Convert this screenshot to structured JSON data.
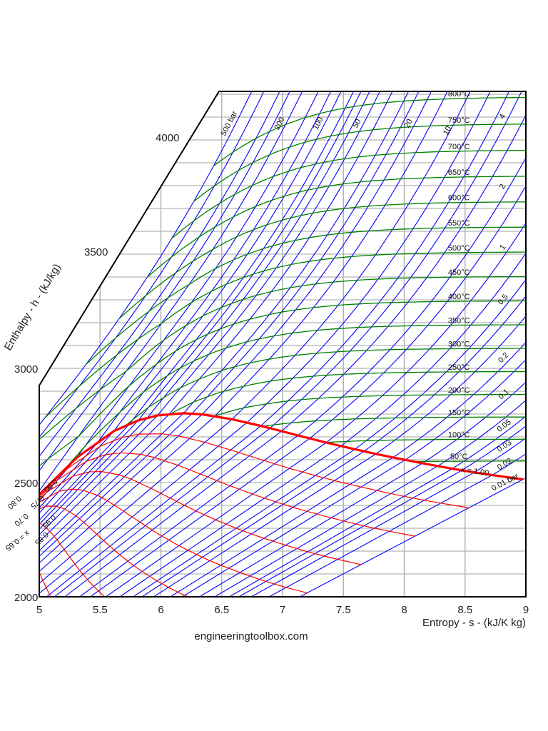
{
  "chart_data": {
    "type": "line",
    "title": "",
    "xlabel": "Entropy - s - (kJ/K kg)",
    "ylabel": "Enthalpy - h - (kJ/kg)",
    "xlim": [
      5,
      9
    ],
    "ylim": [
      2000,
      4200
    ],
    "xticks": [
      5,
      5.5,
      6,
      6.5,
      7,
      7.5,
      8,
      8.5,
      9
    ],
    "yticks": [
      2000,
      2500,
      3000,
      3500,
      4000
    ],
    "grid": true,
    "isobars": {
      "unit": "bar",
      "color": "#0000ff",
      "values": [
        0.01,
        0.02,
        0.03,
        0.04,
        0.05,
        0.07,
        0.1,
        0.15,
        0.2,
        0.3,
        0.4,
        0.5,
        0.7,
        1,
        1.5,
        2,
        3,
        4,
        5,
        7,
        10,
        15,
        20,
        25,
        30,
        40,
        50,
        60,
        70,
        80,
        100,
        120,
        150,
        200,
        250,
        300,
        400,
        500
      ],
      "labels": [
        {
          "p": 500,
          "text": "500 bar"
        },
        {
          "p": 200,
          "text": "200"
        },
        {
          "p": 100,
          "text": "100"
        },
        {
          "p": 50,
          "text": "50"
        },
        {
          "p": 20,
          "text": "20"
        },
        {
          "p": 10,
          "text": "10"
        },
        {
          "p": 4,
          "text": "4"
        },
        {
          "p": 2,
          "text": "2"
        },
        {
          "p": 1,
          "text": "1"
        },
        {
          "p": 0.5,
          "text": "0.5"
        },
        {
          "p": 0.2,
          "text": "0.2"
        },
        {
          "p": 0.1,
          "text": "0.1"
        },
        {
          "p": 0.05,
          "text": "0.05"
        },
        {
          "p": 0.03,
          "text": "0.03"
        },
        {
          "p": 0.02,
          "text": "0.02"
        },
        {
          "p": 0.01,
          "text": "0.01 bar"
        }
      ]
    },
    "isotherms": {
      "unit": "°C",
      "color": "#008000",
      "values": [
        50,
        100,
        150,
        200,
        250,
        300,
        350,
        400,
        450,
        500,
        550,
        600,
        650,
        700,
        750,
        800
      ],
      "labels": [
        "50°C",
        "100°C",
        "150°C",
        "200°C",
        "250°C",
        "300°C",
        "350°C",
        "400°C",
        "450°C",
        "500°C",
        "550°C",
        "600°C",
        "650°C",
        "700°C",
        "750°C",
        "800°C"
      ]
    },
    "quality_lines": {
      "color": "#ff0000",
      "values": [
        0.65,
        0.7,
        0.75,
        0.8,
        0.85,
        0.9,
        0.95
      ],
      "labels": [
        "x = 0.65",
        "0.70",
        "0.75",
        "0.80",
        "0.85",
        "0.90",
        "0.95"
      ]
    },
    "saturation_line": {
      "quality": 1.0,
      "label": "x = 1.00",
      "color": "#ff0000"
    }
  },
  "footer": "engineeringtoolbox.com"
}
